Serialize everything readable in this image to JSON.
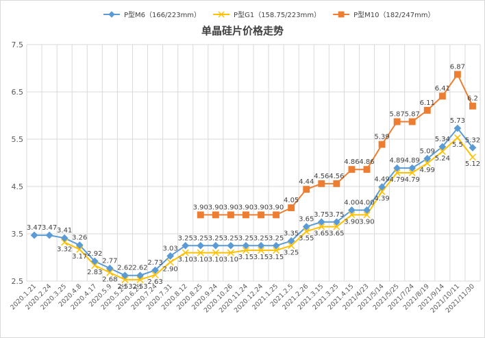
{
  "chart_data": {
    "type": "line",
    "title": "单晶硅片价格走势",
    "xlabel": "",
    "ylabel": "",
    "ylim": [
      2.5,
      7.5
    ],
    "yticks": [
      "2.5",
      "3.5",
      "4.5",
      "5.5",
      "6.5",
      "7.5"
    ],
    "grid": true,
    "legend_position": "top",
    "categories": [
      "2020.1.21",
      "2020.2.24",
      "2020.3.25",
      "2020.4.8",
      "2020.4.17",
      "2020.5.9",
      "2020.5.25",
      "2020.6.25",
      "2020.7.24",
      "2020.7.31",
      "2020.8.12",
      "2020.8.25",
      "2020.9.24",
      "2020.10.26",
      "2020.11.24",
      "2020.12.24",
      "2021.1.25",
      "2021.2.5",
      "2021.2.26",
      "2021.3.15",
      "2021.3.25",
      "2021.4.15",
      "2021/4/23",
      "2021/5/14",
      "2021/5/25",
      "2021/7/24",
      "2021/8/19",
      "2021/9/14",
      "2021/10/11",
      "2021/11/30"
    ],
    "series": [
      {
        "name": "P型M6（166/223mm）",
        "color": "#5b9bd5",
        "marker": "diamond",
        "values": [
          3.47,
          3.47,
          3.41,
          3.26,
          2.92,
          2.77,
          2.62,
          2.62,
          2.73,
          3.03,
          3.25,
          3.25,
          3.25,
          3.25,
          3.25,
          3.25,
          3.25,
          3.35,
          3.65,
          3.75,
          3.75,
          4.0,
          4.0,
          4.49,
          4.89,
          4.89,
          5.09,
          5.34,
          5.73,
          5.32
        ],
        "labels": [
          "3.47",
          "3.47",
          "3.41",
          "3.26",
          "2.92",
          "2.77",
          "2.62",
          "2.62",
          "2.73",
          "3.03",
          "3.25",
          "3.25",
          "3.25",
          "3.25",
          "3.25",
          "3.25",
          "3.25",
          "3.35",
          "3.65",
          "3.75",
          "3.75",
          "4.00",
          "4.00",
          "4.49",
          "4.89",
          "4.89",
          "5.09",
          "5.34",
          "5.73",
          "5.32"
        ]
      },
      {
        "name": "P型G1（158.75/223mm）",
        "color": "#ffc000",
        "marker": "x",
        "values": [
          null,
          null,
          3.32,
          3.17,
          2.83,
          2.68,
          2.53,
          2.53,
          2.63,
          2.9,
          3.1,
          3.1,
          3.1,
          3.1,
          3.15,
          3.15,
          3.15,
          3.25,
          3.55,
          3.65,
          3.65,
          3.9,
          3.9,
          4.39,
          4.79,
          4.79,
          4.99,
          5.24,
          5.53,
          5.12
        ],
        "labels": [
          null,
          null,
          "3.32",
          "3.17",
          "2.83",
          "2.68",
          "2.53",
          "2.53",
          "2.63",
          "2.90",
          "3.10",
          "3.10",
          "3.10",
          "3.10",
          "3.15",
          "3.15",
          "3.15",
          "3.25",
          "3.55",
          "3.65",
          "3.65",
          "3.90",
          "3.90",
          "4.39",
          "4.79",
          "4.79",
          "4.99",
          "5.24",
          "5.5",
          "5.12"
        ]
      },
      {
        "name": "P型M10（182/247mm）",
        "color": "#ed7d31",
        "marker": "square",
        "values": [
          null,
          null,
          null,
          null,
          null,
          null,
          null,
          null,
          null,
          null,
          null,
          3.9,
          3.9,
          3.9,
          3.9,
          3.9,
          3.9,
          4.05,
          4.44,
          4.56,
          4.56,
          4.86,
          4.86,
          5.39,
          5.87,
          5.87,
          6.11,
          6.41,
          6.87,
          6.2
        ],
        "labels": [
          null,
          null,
          null,
          null,
          null,
          null,
          null,
          null,
          null,
          null,
          null,
          "3.90",
          "3.90",
          "3.90",
          "3.90",
          "3.90",
          "3.90",
          "4.05",
          "4.44",
          "4.56",
          "4.56",
          "4.86",
          "4.86",
          "5.39",
          "5.87",
          "5.87",
          "6.11",
          "6.41",
          "6.87",
          "6.2"
        ]
      }
    ]
  }
}
